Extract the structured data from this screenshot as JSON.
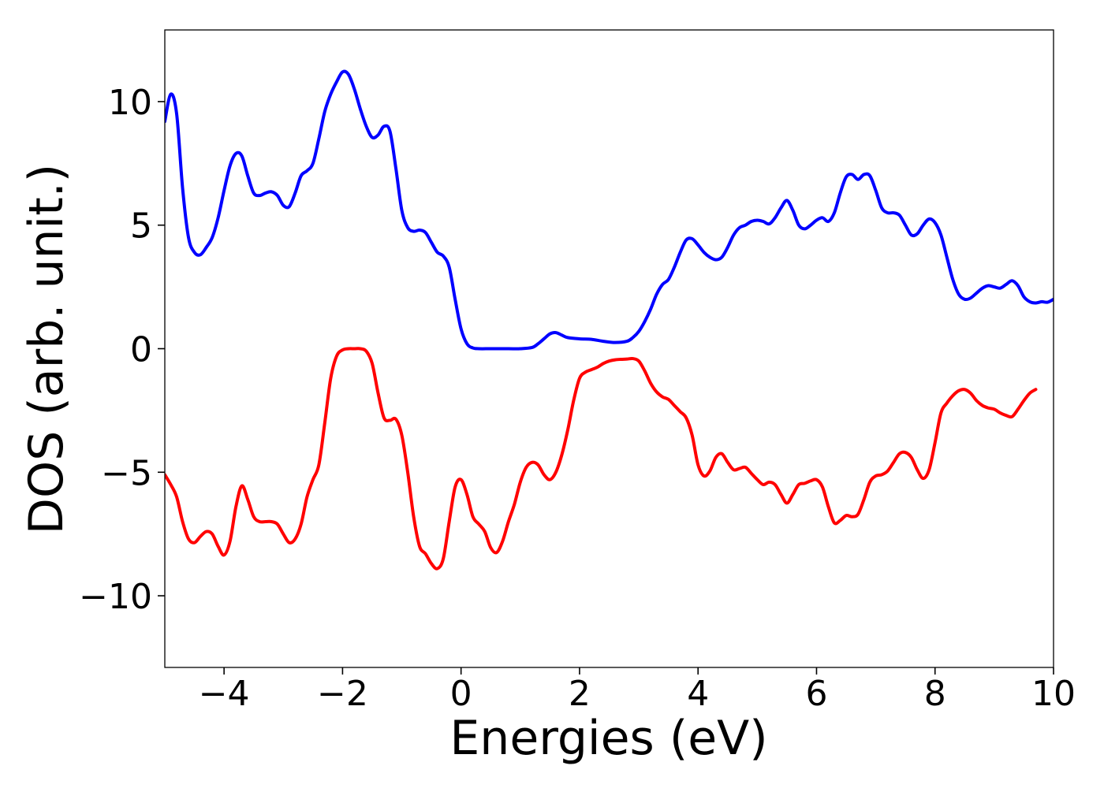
{
  "chart_data": {
    "type": "line",
    "title": "",
    "xlabel": "Energies (eV)",
    "ylabel": "DOS (arb. unit.)",
    "xlim": [
      -5,
      10
    ],
    "ylim": [
      -12.9,
      12.9
    ],
    "grid": false,
    "legend": "none",
    "x_ticks": [
      -4,
      -2,
      0,
      2,
      4,
      6,
      8,
      10
    ],
    "x_tick_labels": [
      "−4",
      "−2",
      "0",
      "2",
      "4",
      "6",
      "8",
      "10"
    ],
    "y_ticks": [
      -10,
      -5,
      0,
      5,
      10
    ],
    "y_tick_labels": [
      "−10",
      "−5",
      "0",
      "5",
      "10"
    ],
    "series": [
      {
        "color": "#0000ff",
        "points": [
          [
            -5.0,
            9.2
          ],
          [
            -4.9,
            10.3
          ],
          [
            -4.8,
            9.5
          ],
          [
            -4.7,
            6.5
          ],
          [
            -4.6,
            4.5
          ],
          [
            -4.5,
            3.9
          ],
          [
            -4.4,
            3.8
          ],
          [
            -4.3,
            4.1
          ],
          [
            -4.2,
            4.5
          ],
          [
            -4.1,
            5.3
          ],
          [
            -4.0,
            6.4
          ],
          [
            -3.9,
            7.4
          ],
          [
            -3.8,
            7.9
          ],
          [
            -3.7,
            7.8
          ],
          [
            -3.6,
            7.0
          ],
          [
            -3.5,
            6.3
          ],
          [
            -3.4,
            6.2
          ],
          [
            -3.3,
            6.3
          ],
          [
            -3.2,
            6.35
          ],
          [
            -3.1,
            6.2
          ],
          [
            -3.0,
            5.8
          ],
          [
            -2.9,
            5.75
          ],
          [
            -2.8,
            6.3
          ],
          [
            -2.7,
            7.0
          ],
          [
            -2.6,
            7.2
          ],
          [
            -2.5,
            7.5
          ],
          [
            -2.4,
            8.5
          ],
          [
            -2.3,
            9.6
          ],
          [
            -2.2,
            10.3
          ],
          [
            -2.1,
            10.8
          ],
          [
            -2.0,
            11.2
          ],
          [
            -1.9,
            11.1
          ],
          [
            -1.8,
            10.5
          ],
          [
            -1.7,
            9.7
          ],
          [
            -1.6,
            9.0
          ],
          [
            -1.5,
            8.55
          ],
          [
            -1.4,
            8.65
          ],
          [
            -1.3,
            9.0
          ],
          [
            -1.2,
            8.8
          ],
          [
            -1.1,
            7.3
          ],
          [
            -1.0,
            5.6
          ],
          [
            -0.9,
            4.9
          ],
          [
            -0.8,
            4.75
          ],
          [
            -0.7,
            4.8
          ],
          [
            -0.6,
            4.7
          ],
          [
            -0.5,
            4.3
          ],
          [
            -0.4,
            3.9
          ],
          [
            -0.3,
            3.75
          ],
          [
            -0.2,
            3.3
          ],
          [
            -0.1,
            2.0
          ],
          [
            0.0,
            0.8
          ],
          [
            0.1,
            0.2
          ],
          [
            0.2,
            0.03
          ],
          [
            0.3,
            0.0
          ],
          [
            0.5,
            0.0
          ],
          [
            0.8,
            0.0
          ],
          [
            1.0,
            0.0
          ],
          [
            1.2,
            0.05
          ],
          [
            1.3,
            0.2
          ],
          [
            1.4,
            0.4
          ],
          [
            1.5,
            0.6
          ],
          [
            1.6,
            0.65
          ],
          [
            1.7,
            0.55
          ],
          [
            1.8,
            0.45
          ],
          [
            2.0,
            0.4
          ],
          [
            2.2,
            0.38
          ],
          [
            2.4,
            0.3
          ],
          [
            2.6,
            0.25
          ],
          [
            2.8,
            0.3
          ],
          [
            2.9,
            0.45
          ],
          [
            3.0,
            0.7
          ],
          [
            3.1,
            1.1
          ],
          [
            3.2,
            1.6
          ],
          [
            3.3,
            2.2
          ],
          [
            3.4,
            2.6
          ],
          [
            3.5,
            2.8
          ],
          [
            3.6,
            3.3
          ],
          [
            3.7,
            3.9
          ],
          [
            3.8,
            4.4
          ],
          [
            3.9,
            4.45
          ],
          [
            4.0,
            4.2
          ],
          [
            4.1,
            3.9
          ],
          [
            4.2,
            3.7
          ],
          [
            4.3,
            3.6
          ],
          [
            4.4,
            3.7
          ],
          [
            4.5,
            4.1
          ],
          [
            4.6,
            4.6
          ],
          [
            4.7,
            4.9
          ],
          [
            4.8,
            5.0
          ],
          [
            4.9,
            5.15
          ],
          [
            5.0,
            5.2
          ],
          [
            5.1,
            5.15
          ],
          [
            5.2,
            5.05
          ],
          [
            5.3,
            5.3
          ],
          [
            5.4,
            5.7
          ],
          [
            5.5,
            6.0
          ],
          [
            5.6,
            5.6
          ],
          [
            5.7,
            5.0
          ],
          [
            5.8,
            4.85
          ],
          [
            5.9,
            5.0
          ],
          [
            6.0,
            5.2
          ],
          [
            6.1,
            5.3
          ],
          [
            6.2,
            5.15
          ],
          [
            6.3,
            5.5
          ],
          [
            6.4,
            6.3
          ],
          [
            6.5,
            6.95
          ],
          [
            6.6,
            7.05
          ],
          [
            6.7,
            6.85
          ],
          [
            6.8,
            7.05
          ],
          [
            6.9,
            7.0
          ],
          [
            7.0,
            6.4
          ],
          [
            7.1,
            5.7
          ],
          [
            7.2,
            5.5
          ],
          [
            7.3,
            5.5
          ],
          [
            7.4,
            5.4
          ],
          [
            7.5,
            5.0
          ],
          [
            7.6,
            4.6
          ],
          [
            7.7,
            4.65
          ],
          [
            7.8,
            5.0
          ],
          [
            7.9,
            5.25
          ],
          [
            8.0,
            5.1
          ],
          [
            8.1,
            4.6
          ],
          [
            8.2,
            3.7
          ],
          [
            8.3,
            2.8
          ],
          [
            8.4,
            2.2
          ],
          [
            8.5,
            2.0
          ],
          [
            8.6,
            2.05
          ],
          [
            8.7,
            2.25
          ],
          [
            8.8,
            2.45
          ],
          [
            8.9,
            2.55
          ],
          [
            9.0,
            2.5
          ],
          [
            9.1,
            2.45
          ],
          [
            9.2,
            2.6
          ],
          [
            9.3,
            2.75
          ],
          [
            9.4,
            2.55
          ],
          [
            9.5,
            2.1
          ],
          [
            9.6,
            1.9
          ],
          [
            9.7,
            1.85
          ],
          [
            9.8,
            1.9
          ],
          [
            9.9,
            1.88
          ],
          [
            10.0,
            2.0
          ]
        ]
      },
      {
        "color": "#ff0000",
        "points": [
          [
            -5.0,
            -5.1
          ],
          [
            -4.9,
            -5.5
          ],
          [
            -4.8,
            -6.0
          ],
          [
            -4.7,
            -7.0
          ],
          [
            -4.6,
            -7.7
          ],
          [
            -4.5,
            -7.85
          ],
          [
            -4.4,
            -7.6
          ],
          [
            -4.3,
            -7.4
          ],
          [
            -4.2,
            -7.5
          ],
          [
            -4.1,
            -8.0
          ],
          [
            -4.0,
            -8.35
          ],
          [
            -3.9,
            -7.8
          ],
          [
            -3.8,
            -6.4
          ],
          [
            -3.7,
            -5.55
          ],
          [
            -3.6,
            -6.1
          ],
          [
            -3.5,
            -6.8
          ],
          [
            -3.4,
            -7.0
          ],
          [
            -3.3,
            -7.0
          ],
          [
            -3.2,
            -7.0
          ],
          [
            -3.1,
            -7.1
          ],
          [
            -3.0,
            -7.5
          ],
          [
            -2.9,
            -7.85
          ],
          [
            -2.8,
            -7.7
          ],
          [
            -2.7,
            -7.1
          ],
          [
            -2.6,
            -6.0
          ],
          [
            -2.5,
            -5.3
          ],
          [
            -2.4,
            -4.7
          ],
          [
            -2.3,
            -3.0
          ],
          [
            -2.2,
            -1.2
          ],
          [
            -2.1,
            -0.3
          ],
          [
            -2.0,
            -0.05
          ],
          [
            -1.9,
            0.0
          ],
          [
            -1.8,
            0.0
          ],
          [
            -1.7,
            0.0
          ],
          [
            -1.6,
            -0.1
          ],
          [
            -1.5,
            -0.6
          ],
          [
            -1.4,
            -1.8
          ],
          [
            -1.3,
            -2.8
          ],
          [
            -1.2,
            -2.9
          ],
          [
            -1.1,
            -2.85
          ],
          [
            -1.0,
            -3.5
          ],
          [
            -0.9,
            -5.0
          ],
          [
            -0.8,
            -6.8
          ],
          [
            -0.7,
            -8.0
          ],
          [
            -0.6,
            -8.3
          ],
          [
            -0.5,
            -8.7
          ],
          [
            -0.4,
            -8.9
          ],
          [
            -0.3,
            -8.5
          ],
          [
            -0.2,
            -7.0
          ],
          [
            -0.1,
            -5.6
          ],
          [
            0.0,
            -5.3
          ],
          [
            0.1,
            -5.9
          ],
          [
            0.2,
            -6.8
          ],
          [
            0.3,
            -7.1
          ],
          [
            0.4,
            -7.4
          ],
          [
            0.5,
            -8.05
          ],
          [
            0.6,
            -8.25
          ],
          [
            0.7,
            -7.8
          ],
          [
            0.8,
            -7.0
          ],
          [
            0.9,
            -6.3
          ],
          [
            1.0,
            -5.4
          ],
          [
            1.1,
            -4.8
          ],
          [
            1.2,
            -4.6
          ],
          [
            1.3,
            -4.7
          ],
          [
            1.4,
            -5.1
          ],
          [
            1.5,
            -5.3
          ],
          [
            1.6,
            -5.0
          ],
          [
            1.7,
            -4.3
          ],
          [
            1.8,
            -3.3
          ],
          [
            1.9,
            -2.1
          ],
          [
            2.0,
            -1.2
          ],
          [
            2.1,
            -0.95
          ],
          [
            2.2,
            -0.85
          ],
          [
            2.3,
            -0.75
          ],
          [
            2.4,
            -0.6
          ],
          [
            2.5,
            -0.5
          ],
          [
            2.6,
            -0.45
          ],
          [
            2.7,
            -0.43
          ],
          [
            2.8,
            -0.42
          ],
          [
            2.9,
            -0.4
          ],
          [
            3.0,
            -0.5
          ],
          [
            3.1,
            -0.9
          ],
          [
            3.2,
            -1.4
          ],
          [
            3.3,
            -1.75
          ],
          [
            3.4,
            -1.95
          ],
          [
            3.5,
            -2.05
          ],
          [
            3.6,
            -2.3
          ],
          [
            3.7,
            -2.55
          ],
          [
            3.8,
            -2.8
          ],
          [
            3.9,
            -3.5
          ],
          [
            4.0,
            -4.7
          ],
          [
            4.1,
            -5.15
          ],
          [
            4.2,
            -4.95
          ],
          [
            4.3,
            -4.4
          ],
          [
            4.4,
            -4.25
          ],
          [
            4.5,
            -4.6
          ],
          [
            4.6,
            -4.9
          ],
          [
            4.7,
            -4.85
          ],
          [
            4.8,
            -4.8
          ],
          [
            4.9,
            -5.05
          ],
          [
            5.0,
            -5.3
          ],
          [
            5.1,
            -5.5
          ],
          [
            5.2,
            -5.4
          ],
          [
            5.3,
            -5.5
          ],
          [
            5.4,
            -5.9
          ],
          [
            5.5,
            -6.25
          ],
          [
            5.6,
            -5.9
          ],
          [
            5.7,
            -5.5
          ],
          [
            5.8,
            -5.45
          ],
          [
            5.9,
            -5.35
          ],
          [
            6.0,
            -5.3
          ],
          [
            6.1,
            -5.6
          ],
          [
            6.2,
            -6.4
          ],
          [
            6.3,
            -7.05
          ],
          [
            6.4,
            -6.95
          ],
          [
            6.5,
            -6.75
          ],
          [
            6.6,
            -6.8
          ],
          [
            6.7,
            -6.7
          ],
          [
            6.8,
            -6.1
          ],
          [
            6.9,
            -5.4
          ],
          [
            7.0,
            -5.15
          ],
          [
            7.1,
            -5.1
          ],
          [
            7.2,
            -4.95
          ],
          [
            7.3,
            -4.6
          ],
          [
            7.4,
            -4.25
          ],
          [
            7.5,
            -4.2
          ],
          [
            7.6,
            -4.4
          ],
          [
            7.7,
            -4.9
          ],
          [
            7.8,
            -5.25
          ],
          [
            7.9,
            -4.9
          ],
          [
            8.0,
            -3.8
          ],
          [
            8.1,
            -2.6
          ],
          [
            8.2,
            -2.2
          ],
          [
            8.3,
            -1.9
          ],
          [
            8.4,
            -1.7
          ],
          [
            8.5,
            -1.65
          ],
          [
            8.6,
            -1.8
          ],
          [
            8.7,
            -2.1
          ],
          [
            8.8,
            -2.3
          ],
          [
            8.9,
            -2.4
          ],
          [
            9.0,
            -2.45
          ],
          [
            9.1,
            -2.6
          ],
          [
            9.2,
            -2.7
          ],
          [
            9.3,
            -2.75
          ],
          [
            9.4,
            -2.45
          ],
          [
            9.5,
            -2.1
          ],
          [
            9.6,
            -1.8
          ],
          [
            9.7,
            -1.65
          ]
        ]
      }
    ]
  }
}
